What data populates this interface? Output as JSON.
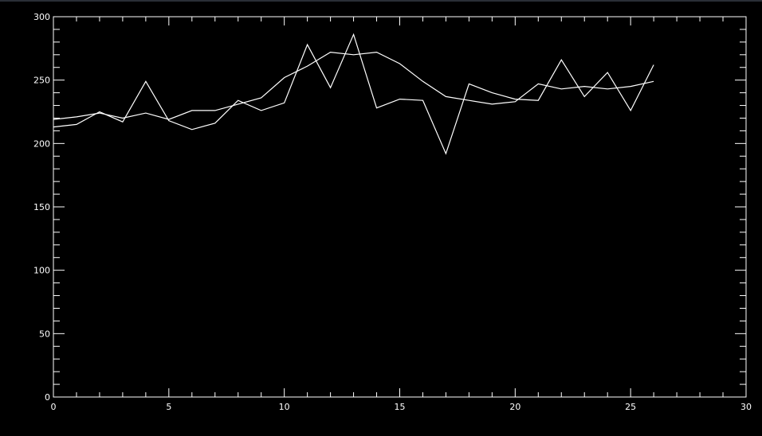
{
  "colors": {
    "background": "#000000",
    "foreground": "#ffffff"
  },
  "chart_data": {
    "type": "line",
    "title": "",
    "xlabel": "",
    "ylabel": "",
    "xlim": [
      0,
      30
    ],
    "ylim": [
      0,
      300
    ],
    "x_ticks": [
      0,
      5,
      10,
      15,
      20,
      25,
      30
    ],
    "y_ticks": [
      0,
      50,
      100,
      150,
      200,
      250,
      300
    ],
    "x_tick_labels": [
      "0",
      "5",
      "10",
      "15",
      "20",
      "25",
      "30"
    ],
    "y_tick_labels": [
      "0",
      "50",
      "100",
      "150",
      "200",
      "250",
      "300"
    ],
    "x_minor_step": 1,
    "y_minor_step": 10,
    "grid": false,
    "series": [
      {
        "x": [
          0,
          1,
          2,
          3,
          4,
          5,
          6,
          7,
          8,
          9,
          10,
          11,
          12,
          13,
          14,
          15,
          16,
          17,
          18,
          19,
          20,
          21,
          22,
          23,
          24,
          25,
          26
        ],
        "values": [
          213,
          215,
          225,
          217,
          249,
          218,
          211,
          216,
          234,
          226,
          232,
          278,
          244,
          286,
          228,
          235,
          234,
          192,
          247,
          240,
          235,
          234,
          266,
          237,
          256,
          226,
          262
        ]
      },
      {
        "x": [
          0,
          1,
          2,
          3,
          4,
          5,
          6,
          7,
          8,
          9,
          10,
          11,
          12,
          13,
          14,
          15,
          16,
          17,
          18,
          19,
          20,
          21,
          22,
          23,
          24,
          25,
          26
        ],
        "values": [
          219,
          221,
          224,
          220,
          224,
          219,
          226,
          226,
          231,
          236,
          252,
          261,
          272,
          270,
          272,
          263,
          249,
          237,
          234,
          231,
          233,
          247,
          243,
          245,
          243,
          245,
          249
        ]
      }
    ]
  }
}
